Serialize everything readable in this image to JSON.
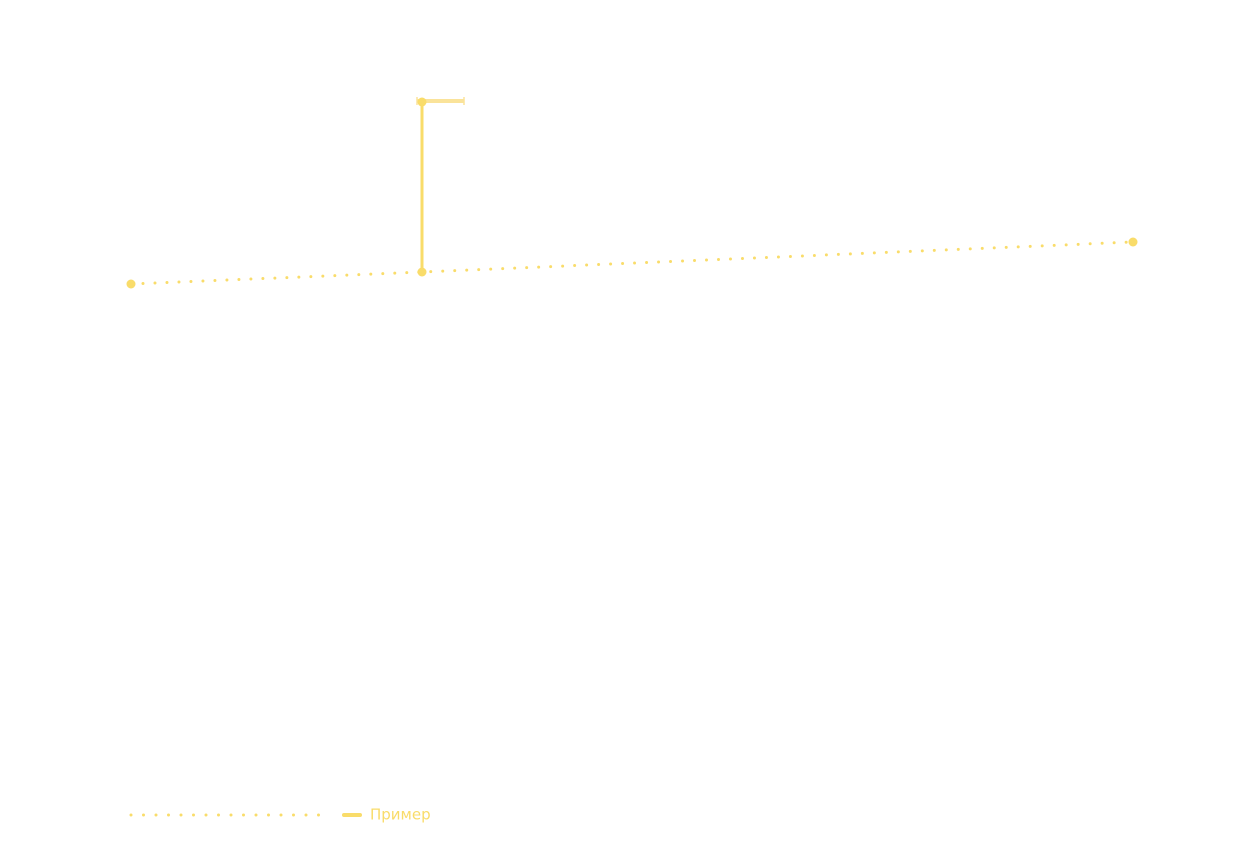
{
  "legend": {
    "label": "Пример"
  }
}
